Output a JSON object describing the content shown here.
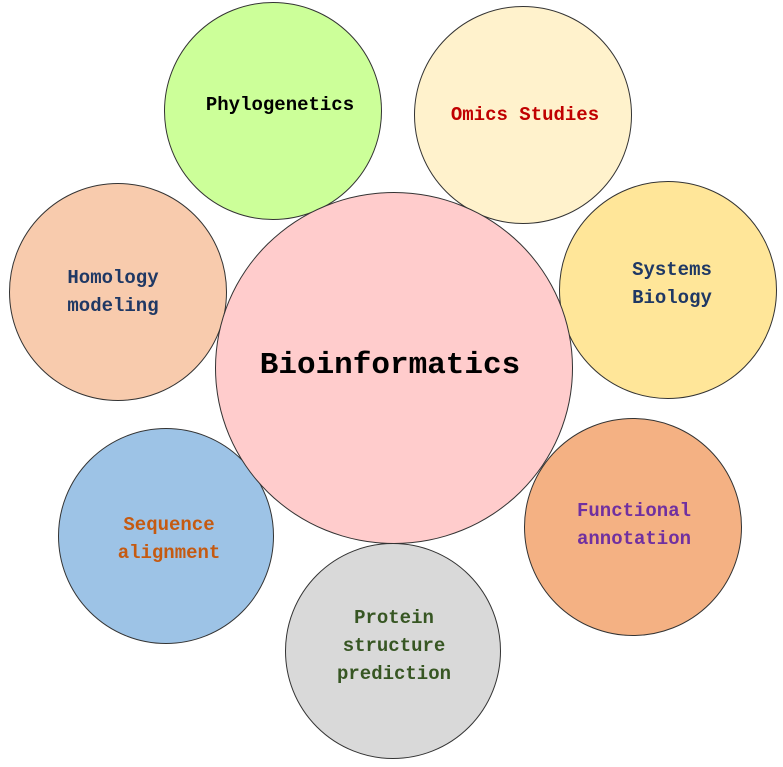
{
  "center": {
    "label": "Bioinformatics",
    "fill": "#ffcccc",
    "text_color": "#000000"
  },
  "topics": {
    "phylogenetics": {
      "label": "Phylogenetics",
      "fill": "#ccff99",
      "text_color": "#000000"
    },
    "omics": {
      "label": "Omics Studies",
      "fill": "#fff2cc",
      "text_color": "#c00000"
    },
    "homology": {
      "label": "Homology\nmodeling",
      "fill": "#f8cbad",
      "text_color": "#1f3864"
    },
    "systems": {
      "label": "Systems\nBiology",
      "fill": "#ffe699",
      "text_color": "#1f3864"
    },
    "sequence": {
      "label": "Sequence\nalignment",
      "fill": "#9dc3e6",
      "text_color": "#c55a11"
    },
    "functional": {
      "label": "Functional\nannotation",
      "fill": "#f4b183",
      "text_color": "#7030a0"
    },
    "protein": {
      "label": "Protein\nstructure\nprediction",
      "fill": "#d9d9d9",
      "text_color": "#375623"
    }
  }
}
